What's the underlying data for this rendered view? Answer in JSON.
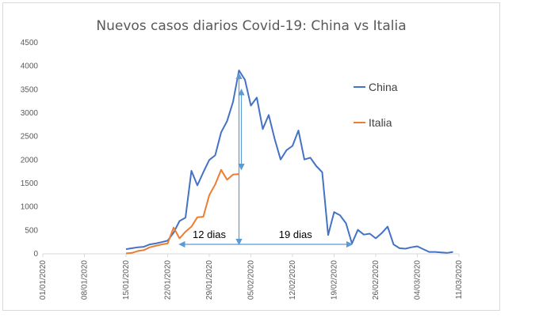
{
  "chart_data": {
    "type": "line",
    "title": "Nuevos casos diarios Covid-19: China vs Italia",
    "xlabel": "",
    "ylabel": "",
    "ylim": [
      0,
      4500
    ],
    "yticks": [
      0,
      500,
      1000,
      1500,
      2000,
      2500,
      3000,
      3500,
      4000,
      4500
    ],
    "xlim": [
      "2020-01-01",
      "2020-03-11"
    ],
    "xticks": [
      "01/01/2020",
      "08/01/2020",
      "15/01/2020",
      "22/01/2020",
      "29/01/2020",
      "05/02/2020",
      "12/02/2020",
      "19/02/2020",
      "26/02/2020",
      "04/03/2020",
      "11/03/2020"
    ],
    "grid": false,
    "legend_position": "right",
    "colors": {
      "China": "#4472c4",
      "Italia": "#ed7d31",
      "annotation": "#5b9bd5"
    },
    "series": [
      {
        "name": "China",
        "x": [
          "2020-01-15",
          "2020-01-16",
          "2020-01-17",
          "2020-01-18",
          "2020-01-19",
          "2020-01-20",
          "2020-01-21",
          "2020-01-22",
          "2020-01-23",
          "2020-01-24",
          "2020-01-25",
          "2020-01-26",
          "2020-01-27",
          "2020-01-28",
          "2020-01-29",
          "2020-01-30",
          "2020-01-31",
          "2020-02-01",
          "2020-02-02",
          "2020-02-03",
          "2020-02-04",
          "2020-02-05",
          "2020-02-06",
          "2020-02-07",
          "2020-02-08",
          "2020-02-09",
          "2020-02-10",
          "2020-02-11",
          "2020-02-12",
          "2020-02-13",
          "2020-02-14",
          "2020-02-15",
          "2020-02-16",
          "2020-02-17",
          "2020-02-18",
          "2020-02-19",
          "2020-02-20",
          "2020-02-21",
          "2020-02-22",
          "2020-02-23",
          "2020-02-24",
          "2020-02-25",
          "2020-02-26",
          "2020-02-27",
          "2020-02-28",
          "2020-02-29",
          "2020-03-01",
          "2020-03-02",
          "2020-03-03",
          "2020-03-04",
          "2020-03-05",
          "2020-03-06",
          "2020-03-07",
          "2020-03-08",
          "2020-03-09",
          "2020-03-10"
        ],
        "values": [
          100,
          120,
          140,
          150,
          200,
          220,
          250,
          280,
          450,
          700,
          770,
          1770,
          1460,
          1740,
          2000,
          2100,
          2590,
          2830,
          3240,
          3910,
          3710,
          3160,
          3330,
          2660,
          2960,
          2450,
          2010,
          2210,
          2300,
          2630,
          2010,
          2050,
          1870,
          1740,
          400,
          890,
          820,
          650,
          220,
          510,
          410,
          430,
          330,
          440,
          580,
          200,
          120,
          110,
          140,
          160,
          100,
          40,
          40,
          30,
          20,
          40
        ]
      },
      {
        "name": "Italia",
        "x": [
          "2020-01-15",
          "2020-01-16",
          "2020-01-17",
          "2020-01-18",
          "2020-01-19",
          "2020-01-20",
          "2020-01-21",
          "2020-01-22",
          "2020-01-23",
          "2020-01-24",
          "2020-01-25",
          "2020-01-26",
          "2020-01-27",
          "2020-01-28",
          "2020-01-29",
          "2020-01-30",
          "2020-01-31",
          "2020-02-01",
          "2020-02-02",
          "2020-02-03"
        ],
        "values": [
          10,
          20,
          60,
          80,
          140,
          170,
          200,
          220,
          560,
          330,
          470,
          580,
          780,
          790,
          1250,
          1480,
          1790,
          1580,
          1690,
          1700
        ]
      }
    ],
    "annotations": [
      {
        "text": "12 dias"
      },
      {
        "text": "19 dias"
      }
    ]
  }
}
